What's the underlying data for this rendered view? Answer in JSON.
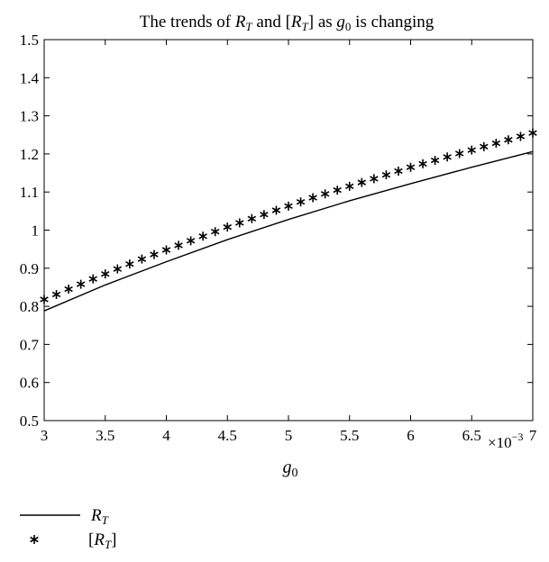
{
  "chart_data": {
    "type": "line",
    "title": "The trends of R_T and [R_T] as g_0 is changing",
    "title_parts": {
      "prefix": "The trends of ",
      "s1_main": "R",
      "s1_sub": "T",
      "mid1": " and [",
      "s2_main": "R",
      "s2_sub": "T",
      "mid2": "] as ",
      "var_main": "g",
      "var_sub": "0",
      "suffix": " is changing"
    },
    "xlabel": "g_0",
    "xlabel_parts": {
      "main": "g",
      "sub": "0"
    },
    "x_multiplier": "×10",
    "x_multiplier_exp": "−3",
    "xlim": [
      3,
      7
    ],
    "ylim": [
      0.5,
      1.5
    ],
    "x_ticks": [
      "3",
      "3.5",
      "4",
      "4.5",
      "5",
      "5.5",
      "6",
      "6.5",
      "7"
    ],
    "y_ticks": [
      "0.5",
      "0.6",
      "0.7",
      "0.8",
      "0.9",
      "1",
      "1.1",
      "1.2",
      "1.3",
      "1.4",
      "1.5"
    ],
    "grid": false,
    "legend_position": "below-left",
    "series": [
      {
        "name": "R_T",
        "name_parts": {
          "main": "R",
          "sub": "T",
          "prefix": "",
          "suffix": ""
        },
        "style": "line",
        "color": "#000000",
        "x": [
          3.0,
          3.5,
          4.0,
          4.5,
          5.0,
          5.5,
          6.0,
          6.5,
          7.0
        ],
        "y": [
          0.788,
          0.856,
          0.917,
          0.975,
          1.028,
          1.077,
          1.122,
          1.165,
          1.206
        ]
      },
      {
        "name": "[R_T]",
        "name_parts": {
          "main": "R",
          "sub": "T",
          "prefix": "[",
          "suffix": "]"
        },
        "style": "markers",
        "marker": "asterisk",
        "color": "#000000",
        "x": [
          3.0,
          3.1,
          3.2,
          3.3,
          3.4,
          3.5,
          3.6,
          3.7,
          3.8,
          3.9,
          4.0,
          4.1,
          4.2,
          4.3,
          4.4,
          4.5,
          4.6,
          4.7,
          4.8,
          4.9,
          5.0,
          5.1,
          5.2,
          5.3,
          5.4,
          5.5,
          5.6,
          5.7,
          5.8,
          5.9,
          6.0,
          6.1,
          6.2,
          6.3,
          6.4,
          6.5,
          6.6,
          6.7,
          6.8,
          6.9,
          7.0
        ],
        "y": [
          0.818,
          0.831,
          0.845,
          0.858,
          0.872,
          0.885,
          0.898,
          0.911,
          0.924,
          0.936,
          0.948,
          0.96,
          0.972,
          0.984,
          0.996,
          1.008,
          1.019,
          1.03,
          1.041,
          1.052,
          1.063,
          1.074,
          1.085,
          1.095,
          1.105,
          1.115,
          1.125,
          1.135,
          1.145,
          1.155,
          1.165,
          1.174,
          1.183,
          1.192,
          1.201,
          1.21,
          1.219,
          1.228,
          1.237,
          1.246,
          1.255
        ]
      }
    ]
  }
}
